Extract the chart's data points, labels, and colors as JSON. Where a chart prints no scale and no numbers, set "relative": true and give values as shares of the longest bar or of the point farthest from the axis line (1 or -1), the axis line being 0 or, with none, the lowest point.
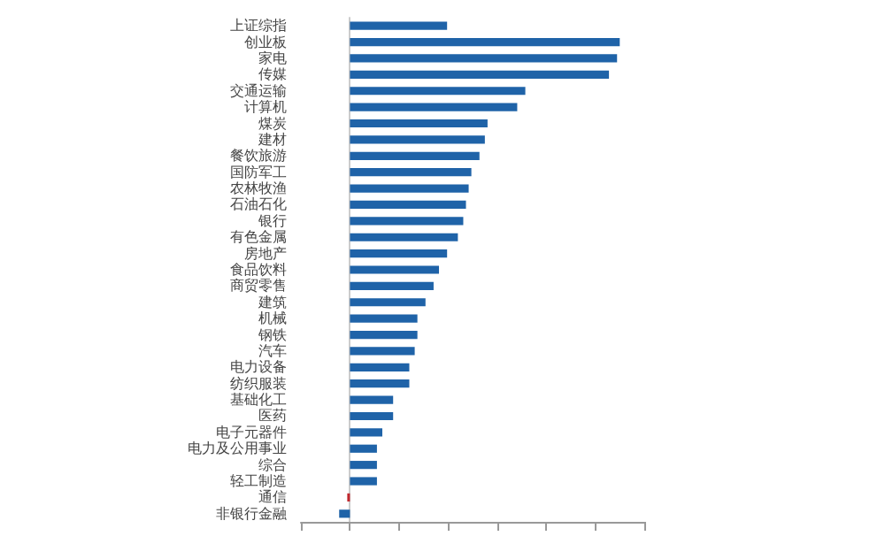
{
  "chart_data": {
    "type": "bar",
    "orientation": "horizontal",
    "relative": true,
    "grid": false,
    "categories": [
      "上证综指",
      "创业板",
      "家电",
      "传媒",
      "交通运输",
      "计算机",
      "煤炭",
      "建材",
      "餐饮旅游",
      "国防军工",
      "农林牧渔",
      "石油石化",
      "银行",
      "有色金属",
      "房地产",
      "食品饮料",
      "商贸零售",
      "建筑",
      "机械",
      "钢铁",
      "汽车",
      "电力设备",
      "纺织服装",
      "基础化工",
      "医药",
      "电子元器件",
      "电力及公用事业",
      "综合",
      "轻工制造",
      "通信",
      "非银行金融"
    ],
    "values": [
      0.36,
      1,
      0.99,
      0.96,
      0.65,
      0.62,
      0.51,
      0.5,
      0.48,
      0.45,
      0.44,
      0.43,
      0.42,
      0.4,
      0.36,
      0.33,
      0.31,
      0.28,
      0.25,
      0.25,
      0.24,
      0.22,
      0.22,
      0.16,
      0.16,
      0.12,
      0.1,
      0.1,
      0.1,
      -0.01,
      -0.04
    ],
    "colors": [
      "#1f63a8",
      "#1f63a8",
      "#1f63a8",
      "#1f63a8",
      "#1f63a8",
      "#1f63a8",
      "#1f63a8",
      "#1f63a8",
      "#1f63a8",
      "#1f63a8",
      "#1f63a8",
      "#1f63a8",
      "#1f63a8",
      "#1f63a8",
      "#1f63a8",
      "#1f63a8",
      "#1f63a8",
      "#1f63a8",
      "#1f63a8",
      "#1f63a8",
      "#1f63a8",
      "#1f63a8",
      "#1f63a8",
      "#1f63a8",
      "#1f63a8",
      "#1f63a8",
      "#1f63a8",
      "#1f63a8",
      "#1f63a8",
      "#c0272d",
      "#1f63a8"
    ]
  }
}
